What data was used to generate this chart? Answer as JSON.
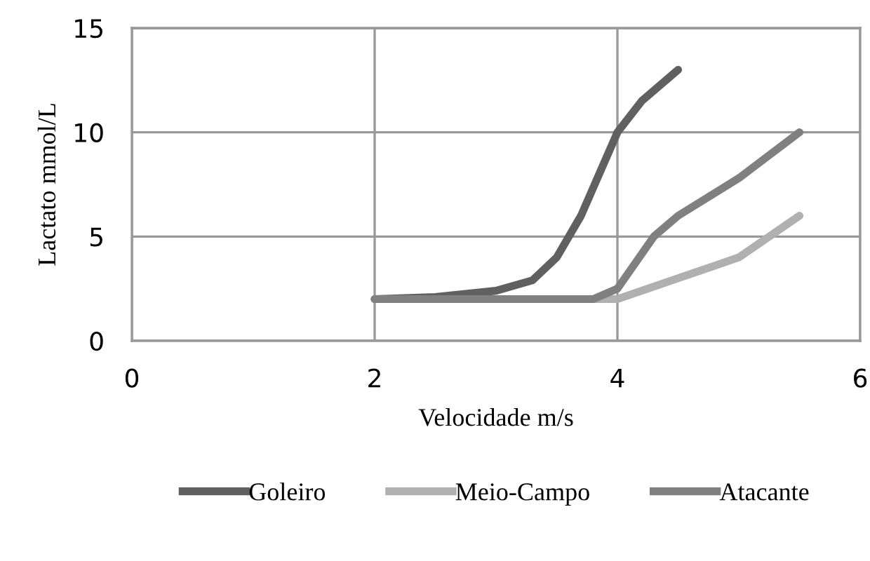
{
  "chart_data": {
    "type": "line",
    "xlabel": "Velocidade m/s",
    "ylabel": "Lactato mmol/L",
    "xlim": [
      0,
      6
    ],
    "xticks": [
      0,
      2,
      4,
      6
    ],
    "ylim": [
      0,
      15
    ],
    "yticks": [
      0,
      5,
      10,
      15
    ],
    "grid": true,
    "legend": "bottom",
    "line_style": "solid",
    "marker": "none",
    "series": [
      {
        "name": "Goleiro",
        "color": "#606060",
        "x": [
          2,
          2.5,
          3,
          3.3,
          3.5,
          3.7,
          4,
          4.2,
          4.5
        ],
        "values": [
          2,
          2.1,
          2.4,
          2.9,
          4,
          6,
          10,
          11.5,
          13
        ]
      },
      {
        "name": "Meio-Campo",
        "color": "#b0b0b0",
        "x": [
          2,
          3,
          4,
          4.5,
          5,
          5.5
        ],
        "values": [
          2,
          2,
          2,
          3,
          4,
          6
        ]
      },
      {
        "name": "Atacante",
        "color": "#808080",
        "x": [
          2,
          3,
          3.8,
          4,
          4.3,
          4.5,
          5,
          5.5
        ],
        "values": [
          2,
          2,
          2,
          2.5,
          5,
          6,
          7.8,
          10
        ]
      }
    ]
  }
}
